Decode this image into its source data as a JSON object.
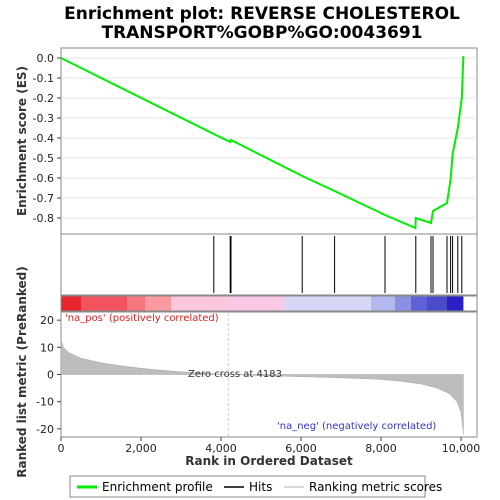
{
  "chart_data": {
    "type": "line",
    "title_lines": [
      "Enrichment plot: REVERSE CHOLESTEROL",
      "TRANSPORT%GOBP%GO:0043691"
    ],
    "xlabel": "Rank in Ordered Dataset",
    "es_panel": {
      "ylabel": "Enrichment score (ES)",
      "ylim": [
        -0.88,
        0.05
      ],
      "yticks": [
        0.0,
        -0.1,
        -0.2,
        -0.3,
        -0.4,
        -0.5,
        -0.6,
        -0.7,
        -0.8
      ],
      "ytick_labels": [
        "0.0",
        "-0.1",
        "-0.2",
        "-0.3",
        "-0.4",
        "-0.5",
        "-0.6",
        "-0.7",
        "-0.8"
      ],
      "series_name": "Enrichment profile",
      "color": "#00ee00",
      "x": [
        0,
        3820,
        4230,
        4250,
        6030,
        6840,
        8100,
        8860,
        8870,
        9250,
        9300,
        9650,
        9740,
        9790,
        9920,
        10020,
        10060
      ],
      "y": [
        0.0,
        -0.38,
        -0.42,
        -0.41,
        -0.59,
        -0.665,
        -0.785,
        -0.85,
        -0.8,
        -0.825,
        -0.765,
        -0.725,
        -0.605,
        -0.48,
        -0.35,
        -0.2,
        0.01
      ]
    },
    "hits": {
      "series_name": "Hits",
      "positions": [
        3820,
        4230,
        4250,
        6030,
        6840,
        8100,
        8870,
        9250,
        9300,
        9650,
        9740,
        9790,
        9920,
        10020
      ]
    },
    "ranking_panel": {
      "ylabel": "Ranked list metric (PreRanked)",
      "ylim": [
        -23,
        23
      ],
      "yticks": [
        20,
        10,
        0,
        -10,
        -20
      ],
      "ytick_labels": [
        "20",
        "10",
        "0",
        "-10",
        "-20"
      ],
      "series_name": "Ranking metric scores",
      "zero_cross_label": "Zero cross at 4183",
      "zero_cross": 4183,
      "pos_label": "'na_pos' (positively correlated)",
      "neg_label": "'na_neg' (negatively correlated)",
      "curve_x": [
        0,
        60,
        200,
        500,
        1000,
        1500,
        2000,
        2500,
        3000,
        3500,
        4183,
        5000,
        6000,
        7000,
        8000,
        8500,
        9000,
        9400,
        9700,
        9900,
        10000,
        10060
      ],
      "curve_y": [
        13,
        10,
        8,
        6,
        4.3,
        3.2,
        2.3,
        1.6,
        1.0,
        0.5,
        0,
        -0.4,
        -0.8,
        -1.2,
        -1.8,
        -2.5,
        -3.5,
        -5,
        -7,
        -10,
        -14,
        -22
      ]
    },
    "xlim": [
      0,
      10400
    ],
    "xticks": [
      0,
      2000,
      4000,
      6000,
      8000,
      10000
    ],
    "xtick_labels": [
      "0",
      "2,000",
      "4,000",
      "6,000",
      "8,000",
      "10,000"
    ],
    "legend_entries": [
      "Enrichment profile",
      "Hits",
      "Ranking metric scores"
    ],
    "colorbar_segments": [
      {
        "from": 0,
        "to": 500,
        "color": "#e8242c"
      },
      {
        "from": 500,
        "to": 1650,
        "color": "#f2525e"
      },
      {
        "from": 1650,
        "to": 2100,
        "color": "#f6757e"
      },
      {
        "from": 2100,
        "to": 2750,
        "color": "#fa9aa0"
      },
      {
        "from": 2750,
        "to": 4200,
        "color": "#fcc6dc"
      },
      {
        "from": 4200,
        "to": 5550,
        "color": "#f9c9e6"
      },
      {
        "from": 5550,
        "to": 7750,
        "color": "#d6d6f6"
      },
      {
        "from": 7750,
        "to": 8350,
        "color": "#b4b8ee"
      },
      {
        "from": 8350,
        "to": 8750,
        "color": "#8c90e2"
      },
      {
        "from": 8750,
        "to": 9150,
        "color": "#5e62d6"
      },
      {
        "from": 9150,
        "to": 9650,
        "color": "#4a4ccc"
      },
      {
        "from": 9650,
        "to": 10060,
        "color": "#2a1ec4"
      }
    ]
  }
}
